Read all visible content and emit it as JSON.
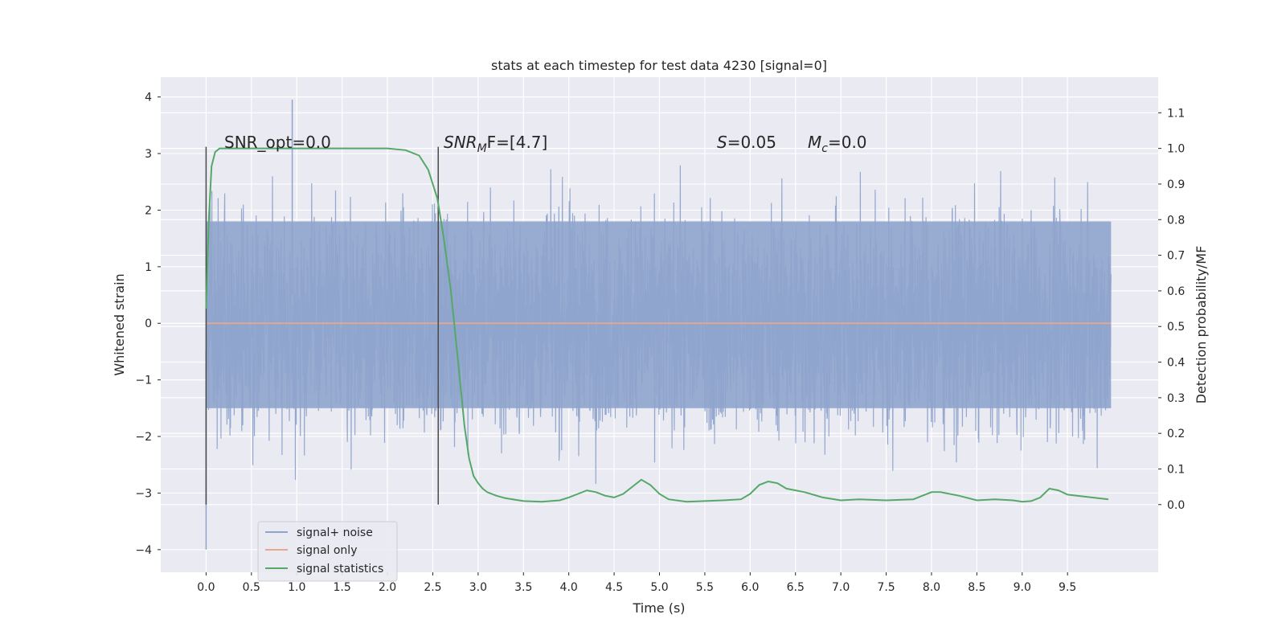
{
  "chart_data": {
    "type": "line",
    "title": "stats at each timestep for test data 4230 [signal=0]",
    "xlabel": "Time (s)",
    "ylabel": "Whitened strain",
    "y2label": "Detection probability/MF",
    "xlim": [
      -0.5,
      10.5
    ],
    "ylim": [
      -4.4,
      4.35
    ],
    "y2lim": [
      -0.19,
      1.2
    ],
    "x_ticks": [
      0.0,
      0.5,
      1.0,
      1.5,
      2.0,
      2.5,
      3.0,
      3.5,
      4.0,
      4.5,
      5.0,
      5.5,
      6.0,
      6.5,
      7.0,
      7.5,
      8.0,
      8.5,
      9.0,
      9.5
    ],
    "x_tick_labels": [
      "0.0",
      "0.5",
      "1.0",
      "1.5",
      "2.0",
      "2.5",
      "3.0",
      "3.5",
      "4.0",
      "4.5",
      "5.0",
      "5.5",
      "6.0",
      "6.5",
      "7.0",
      "7.5",
      "8.0",
      "8.5",
      "9.0",
      "9.5"
    ],
    "y_ticks": [
      -4,
      -3,
      -2,
      -1,
      0,
      1,
      2,
      3,
      4
    ],
    "y_tick_labels": [
      "−4",
      "−3",
      "−2",
      "−1",
      "0",
      "1",
      "2",
      "3",
      "4"
    ],
    "y2_ticks": [
      0.0,
      0.1,
      0.2,
      0.3,
      0.4,
      0.5,
      0.6,
      0.7,
      0.8,
      0.9,
      1.0,
      1.1
    ],
    "y2_tick_labels": [
      "0.0",
      "0.1",
      "0.2",
      "0.3",
      "0.4",
      "0.5",
      "0.6",
      "0.7",
      "0.8",
      "0.9",
      "1.0",
      "1.1"
    ],
    "grid": true,
    "legend_position": "lower-left",
    "series": [
      {
        "name": "signal+ noise",
        "color": "#8fa4cc",
        "kind": "noise",
        "x_range": [
          0.0,
          9.98
        ],
        "band_low": -1.5,
        "band_high": 1.8,
        "min": -4.0,
        "max": 3.95
      },
      {
        "name": "signal only",
        "color": "#e9a88b",
        "kind": "flat",
        "x": [
          0.0,
          9.98
        ],
        "y": [
          0.0,
          0.0
        ]
      },
      {
        "name": "signal statistics",
        "color": "#55a868",
        "axis": "right",
        "x": [
          0.0,
          0.03,
          0.06,
          0.1,
          0.15,
          0.2,
          0.3,
          0.5,
          1.0,
          1.5,
          2.0,
          2.2,
          2.35,
          2.45,
          2.55,
          2.62,
          2.7,
          2.78,
          2.85,
          2.9,
          2.95,
          3.0,
          3.05,
          3.1,
          3.2,
          3.3,
          3.5,
          3.7,
          3.9,
          4.0,
          4.1,
          4.2,
          4.3,
          4.4,
          4.5,
          4.6,
          4.7,
          4.8,
          4.9,
          5.0,
          5.1,
          5.3,
          5.5,
          5.7,
          5.9,
          6.0,
          6.1,
          6.2,
          6.3,
          6.4,
          6.6,
          6.8,
          7.0,
          7.2,
          7.5,
          7.8,
          8.0,
          8.1,
          8.3,
          8.5,
          8.7,
          8.9,
          9.0,
          9.1,
          9.2,
          9.3,
          9.4,
          9.5,
          9.7,
          9.95
        ],
        "y": [
          0.55,
          0.8,
          0.95,
          0.99,
          1.0,
          1.0,
          1.0,
          1.0,
          1.0,
          1.0,
          1.0,
          0.995,
          0.98,
          0.94,
          0.86,
          0.75,
          0.6,
          0.4,
          0.22,
          0.13,
          0.08,
          0.06,
          0.045,
          0.035,
          0.025,
          0.018,
          0.01,
          0.008,
          0.012,
          0.02,
          0.03,
          0.04,
          0.035,
          0.025,
          0.02,
          0.03,
          0.05,
          0.07,
          0.055,
          0.03,
          0.015,
          0.008,
          0.01,
          0.012,
          0.015,
          0.03,
          0.055,
          0.065,
          0.06,
          0.045,
          0.035,
          0.02,
          0.012,
          0.015,
          0.012,
          0.015,
          0.035,
          0.035,
          0.025,
          0.012,
          0.015,
          0.012,
          0.008,
          0.01,
          0.02,
          0.045,
          0.04,
          0.028,
          0.022,
          0.015
        ]
      }
    ],
    "annotations": [
      {
        "text": "SNR_opt=0.0"
      },
      {
        "base": "SNR",
        "sub": "M",
        "rest": "F=[4.7]"
      },
      {
        "base": "S",
        "rest": "=0.05"
      },
      {
        "base": "M",
        "sub": "c",
        "rest": "=0.0"
      }
    ],
    "vlines": [
      {
        "x": 0.0,
        "ymin": 0.0,
        "ymax": 1.0
      },
      {
        "x": 2.56,
        "ymin": 0.0,
        "ymax": 1.0
      }
    ]
  }
}
